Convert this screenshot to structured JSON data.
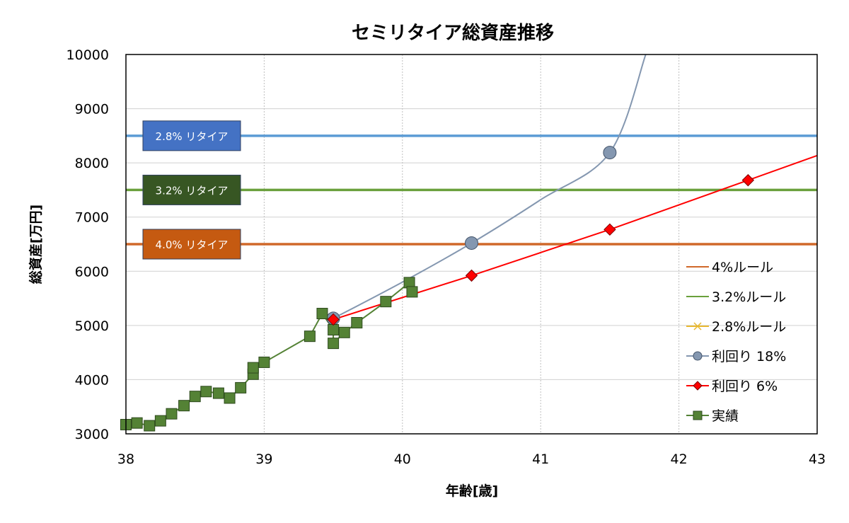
{
  "chart_data": {
    "type": "line",
    "title": "セミリタイア総資産推移",
    "xlabel": "年齢[歳]",
    "ylabel": "総資産[万円]",
    "xlim": [
      38,
      43
    ],
    "ylim": [
      3000,
      10000
    ],
    "x_ticks": [
      "38",
      "39",
      "40",
      "41",
      "42",
      "43"
    ],
    "y_ticks": [
      "3000",
      "4000",
      "5000",
      "6000",
      "7000",
      "8000",
      "9000",
      "10000"
    ],
    "grid": true,
    "legend_position": "right",
    "series": [
      {
        "name": "4%ルール",
        "color": "#D0682A",
        "marker": "none",
        "x": [
          38,
          43
        ],
        "values": [
          6500,
          6500
        ]
      },
      {
        "name": "3.2%ルール",
        "color": "#6AA03C",
        "marker": "none",
        "x": [
          38,
          43
        ],
        "values": [
          7500,
          7500
        ]
      },
      {
        "name": "2.8%ルール",
        "color": "#E8B830",
        "marker": "x",
        "x": [],
        "values": []
      },
      {
        "name": "利回り 18%",
        "color": "#8497B0",
        "marker": "circle",
        "x": [
          39.5,
          40.5,
          41.5
        ],
        "values": [
          5130,
          6520,
          8190
        ]
      },
      {
        "name": "利回り 6%",
        "color": "#FF0000",
        "marker": "diamond",
        "x": [
          39.5,
          40.5,
          41.5,
          42.5
        ],
        "values": [
          5110,
          5920,
          6770,
          7680
        ]
      },
      {
        "name": "実績",
        "color": "#548235",
        "marker": "square",
        "x": [
          38.0,
          38.08,
          38.17,
          38.25,
          38.33,
          38.42,
          38.5,
          38.58,
          38.67,
          38.75,
          38.83,
          38.92,
          38.92,
          39.0,
          39.33,
          39.42,
          39.5,
          39.5,
          39.58,
          39.67,
          39.88,
          40.05,
          40.07
        ],
        "values": [
          3170,
          3200,
          3150,
          3240,
          3370,
          3520,
          3690,
          3780,
          3750,
          3660,
          3850,
          4100,
          4220,
          4320,
          4800,
          5220,
          4920,
          4670,
          4870,
          5050,
          5440,
          5790,
          5620
        ]
      }
    ],
    "series_18_curve": {
      "x": [
        39.5,
        40.0,
        40.5,
        41.0,
        41.5,
        41.76
      ],
      "values": [
        5130,
        5800,
        6520,
        7320,
        8190,
        10000
      ]
    },
    "reference_lines": [
      {
        "label": "2.8% リタイア",
        "value": 8500,
        "color": "#5B9BD5",
        "box_color": "#4472C4"
      },
      {
        "label": "3.2% リタイア",
        "value": 7500,
        "color": "#6AA03C",
        "box_color": "#375623"
      },
      {
        "label": "4.0% リタイア",
        "value": 6500,
        "color": "#D0682A",
        "box_color": "#C55A11"
      }
    ]
  }
}
